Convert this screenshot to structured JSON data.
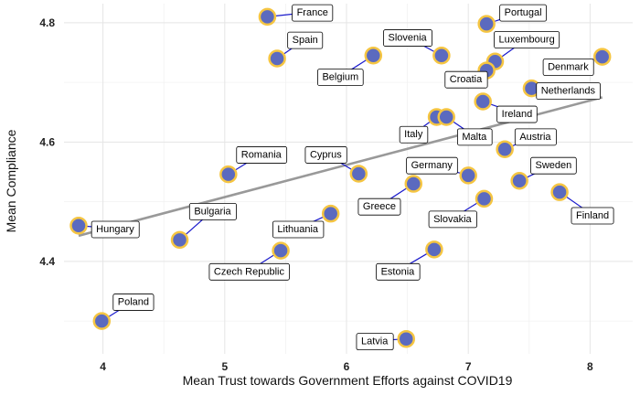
{
  "chart_data": {
    "type": "scatter",
    "xlabel": "Mean Trust towards Government Efforts against COVID19",
    "ylabel": "Mean Compliance",
    "xlim": [
      3.68,
      8.35
    ],
    "ylim": [
      4.245,
      4.832
    ],
    "x_ticks": [
      4,
      5,
      6,
      7,
      8
    ],
    "x_tick_labels": [
      "4",
      "5",
      "6",
      "7",
      "8"
    ],
    "x_minor_ticks": [
      4.5,
      5.5,
      6.5,
      7.5
    ],
    "y_ticks": [
      4.4,
      4.6,
      4.8
    ],
    "y_tick_labels": [
      "4.4",
      "4.6",
      "4.8"
    ],
    "y_minor_ticks": [
      4.3,
      4.5,
      4.7
    ],
    "grid": true,
    "point_color": "#5b6abf",
    "point_outline": "#f5c542",
    "leader_color": "#1a1acc",
    "fit_line": {
      "x": [
        3.8,
        8.1
      ],
      "y": [
        4.443,
        4.675
      ],
      "color": "#999999"
    },
    "points": [
      {
        "label": "France",
        "x": 5.35,
        "y": 4.81,
        "lx": 5.72,
        "ly": 4.818
      },
      {
        "label": "Spain",
        "x": 5.43,
        "y": 4.74,
        "lx": 5.66,
        "ly": 4.772
      },
      {
        "label": "Slovenia",
        "x": 6.78,
        "y": 4.745,
        "lx": 6.5,
        "ly": 4.776
      },
      {
        "label": "Belgium",
        "x": 6.22,
        "y": 4.745,
        "lx": 5.95,
        "ly": 4.71
      },
      {
        "label": "Portugal",
        "x": 7.15,
        "y": 4.798,
        "lx": 7.45,
        "ly": 4.818
      },
      {
        "label": "Luxembourg",
        "x": 7.22,
        "y": 4.735,
        "lx": 7.48,
        "ly": 4.773
      },
      {
        "label": "Denmark",
        "x": 8.1,
        "y": 4.743,
        "lx": 7.82,
        "ly": 4.727
      },
      {
        "label": "Croatia",
        "x": 7.15,
        "y": 4.72,
        "lx": 6.98,
        "ly": 4.706
      },
      {
        "label": "Netherlands",
        "x": 7.52,
        "y": 4.69,
        "lx": 7.82,
        "ly": 4.687
      },
      {
        "label": "Ireland",
        "x": 7.12,
        "y": 4.668,
        "lx": 7.4,
        "ly": 4.648
      },
      {
        "label": "Italy",
        "x": 6.74,
        "y": 4.642,
        "lx": 6.55,
        "ly": 4.614
      },
      {
        "label": "Malta",
        "x": 6.82,
        "y": 4.642,
        "lx": 7.05,
        "ly": 4.61
      },
      {
        "label": "Austria",
        "x": 7.3,
        "y": 4.588,
        "lx": 7.55,
        "ly": 4.61
      },
      {
        "label": "Cyprus",
        "x": 6.1,
        "y": 4.547,
        "lx": 5.83,
        "ly": 4.58
      },
      {
        "label": "Romania",
        "x": 5.03,
        "y": 4.546,
        "lx": 5.3,
        "ly": 4.58
      },
      {
        "label": "Germany",
        "x": 7.0,
        "y": 4.544,
        "lx": 6.7,
        "ly": 4.562
      },
      {
        "label": "Sweden",
        "x": 7.42,
        "y": 4.535,
        "lx": 7.7,
        "ly": 4.562
      },
      {
        "label": "Greece",
        "x": 6.55,
        "y": 4.53,
        "lx": 6.27,
        "ly": 4.493
      },
      {
        "label": "Finland",
        "x": 7.75,
        "y": 4.516,
        "lx": 8.02,
        "ly": 4.478
      },
      {
        "label": "Slovakia",
        "x": 7.13,
        "y": 4.505,
        "lx": 6.87,
        "ly": 4.472
      },
      {
        "label": "Lithuania",
        "x": 5.87,
        "y": 4.48,
        "lx": 5.6,
        "ly": 4.455
      },
      {
        "label": "Hungary",
        "x": 3.8,
        "y": 4.46,
        "lx": 4.1,
        "ly": 4.455
      },
      {
        "label": "Bulgaria",
        "x": 4.63,
        "y": 4.436,
        "lx": 4.9,
        "ly": 4.485
      },
      {
        "label": "Estonia",
        "x": 6.72,
        "y": 4.42,
        "lx": 6.42,
        "ly": 4.384
      },
      {
        "label": "Czech Republic",
        "x": 5.46,
        "y": 4.418,
        "lx": 5.2,
        "ly": 4.384
      },
      {
        "label": "Poland",
        "x": 3.99,
        "y": 4.3,
        "lx": 4.25,
        "ly": 4.333
      },
      {
        "label": "Latvia",
        "x": 6.49,
        "y": 4.27,
        "lx": 6.23,
        "ly": 4.267
      }
    ]
  }
}
